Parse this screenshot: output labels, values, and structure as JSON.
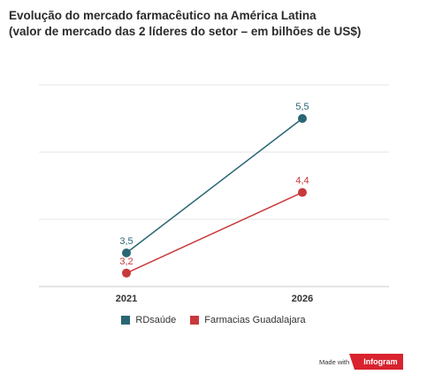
{
  "header": {
    "title": "Evolução do mercado farmacêutico na América Latina",
    "subtitle": "(valor de mercado das 2 líderes do setor – em bilhões de US$)"
  },
  "chart_data": {
    "type": "line",
    "title": "Evolução do mercado farmacêutico na América Latina",
    "subtitle": "(valor de mercado das 2 líderes do setor – em bilhões de US$)",
    "x": [
      "2021",
      "2026"
    ],
    "ylim": [
      3,
      6
    ],
    "grid": true,
    "legend_position": "bottom-center",
    "series": [
      {
        "name": "RDsaúde",
        "color": "#2a6674",
        "values": [
          3.5,
          5.5
        ],
        "labels": [
          "3,5",
          "5,5"
        ]
      },
      {
        "name": "Farmacias Guadalajara",
        "color": "#c8393b",
        "values": [
          3.2,
          4.4
        ],
        "labels": [
          "3,2",
          "4,4"
        ]
      }
    ]
  },
  "legend": {
    "items": [
      {
        "label": "RDsaúde",
        "color": "#2a6674"
      },
      {
        "label": "Farmacias Guadalajara",
        "color": "#c8393b"
      }
    ]
  },
  "footer": {
    "made_with": "Made with",
    "brand": "Infogram"
  }
}
